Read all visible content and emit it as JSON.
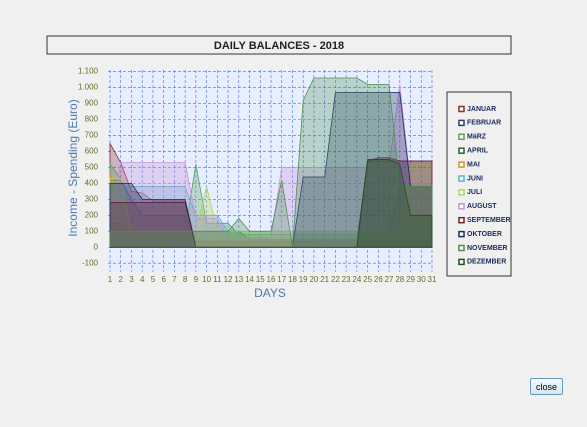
{
  "chart_data": {
    "type": "area",
    "title": "DAILY BALANCES - 2018",
    "x_label": "DAYS",
    "y_label": "Income - Spending (Euro)",
    "x": [
      1,
      2,
      3,
      4,
      5,
      6,
      7,
      8,
      9,
      10,
      11,
      12,
      13,
      14,
      15,
      16,
      17,
      18,
      19,
      20,
      21,
      22,
      23,
      24,
      25,
      26,
      27,
      28,
      29,
      30,
      31
    ],
    "xlim": [
      1,
      31
    ],
    "xticks": [
      1,
      2,
      3,
      4,
      5,
      6,
      7,
      8,
      9,
      10,
      11,
      12,
      13,
      14,
      15,
      16,
      17,
      18,
      19,
      20,
      21,
      22,
      23,
      24,
      25,
      26,
      27,
      28,
      29,
      30,
      31
    ],
    "ylim": [
      -155,
      1110
    ],
    "yticks": [
      {
        "value": 1100,
        "label": "1.100"
      },
      {
        "value": 1000,
        "label": "1.000"
      },
      900,
      800,
      700,
      600,
      500,
      400,
      300,
      200,
      100,
      0,
      -100
    ],
    "grid": true,
    "series": [
      {
        "name": "JANUAR",
        "color": "#8b2e2e",
        "values": [
          650,
          530,
          350,
          340,
          290,
          290,
          290,
          290,
          30,
          30,
          30,
          30,
          30,
          30,
          30,
          30,
          30,
          30,
          30,
          30,
          0,
          0,
          0,
          0,
          0,
          0,
          0,
          0,
          0,
          0,
          0
        ]
      },
      {
        "name": "FEBRUAR",
        "color": "#2e3a6e",
        "values": [
          420,
          420,
          300,
          200,
          200,
          200,
          200,
          200,
          40,
          40,
          40,
          40,
          40,
          40,
          40,
          40,
          40,
          40,
          40,
          40,
          40,
          40,
          40,
          40,
          540,
          540,
          540,
          540,
          540,
          540,
          540
        ]
      },
      {
        "name": "MäRZ",
        "color": "#5a9e5a",
        "values": [
          520,
          430,
          180,
          100,
          100,
          100,
          100,
          100,
          520,
          150,
          150,
          150,
          80,
          80,
          80,
          80,
          80,
          80,
          80,
          80,
          80,
          80,
          80,
          80,
          80,
          80,
          80,
          380,
          380,
          380,
          380
        ]
      },
      {
        "name": "APRIL",
        "color": "#2e5e2e",
        "values": [
          150,
          150,
          100,
          100,
          100,
          100,
          100,
          100,
          100,
          100,
          100,
          100,
          100,
          50,
          50,
          50,
          50,
          50,
          50,
          50,
          50,
          50,
          50,
          50,
          50,
          50,
          50,
          50,
          50,
          50,
          50
        ]
      },
      {
        "name": "MAI",
        "color": "#e08a2e",
        "values": [
          460,
          300,
          250,
          250,
          250,
          250,
          250,
          250,
          50,
          50,
          50,
          50,
          50,
          50,
          50,
          50,
          50,
          50,
          50,
          50,
          50,
          50,
          50,
          50,
          50,
          50,
          50,
          50,
          50,
          50,
          50
        ]
      },
      {
        "name": "JUNI",
        "color": "#5ab0c8",
        "values": [
          380,
          380,
          380,
          380,
          380,
          380,
          380,
          380,
          200,
          200,
          200,
          100,
          100,
          100,
          100,
          100,
          100,
          100,
          100,
          100,
          100,
          100,
          100,
          100,
          100,
          100,
          100,
          100,
          100,
          100,
          100
        ]
      },
      {
        "name": "JULI",
        "color": "#b0d84a",
        "values": [
          430,
          430,
          100,
          100,
          100,
          100,
          100,
          100,
          100,
          380,
          100,
          100,
          100,
          100,
          100,
          100,
          100,
          100,
          100,
          100,
          100,
          100,
          100,
          100,
          100,
          100,
          100,
          100,
          520,
          520,
          520
        ]
      },
      {
        "name": "AUGUST",
        "color": "#c890d8",
        "values": [
          200,
          530,
          530,
          530,
          530,
          530,
          530,
          530,
          180,
          180,
          180,
          60,
          60,
          60,
          60,
          60,
          500,
          500,
          500,
          500,
          500,
          500,
          500,
          500,
          500,
          500,
          500,
          1020,
          400,
          400,
          400
        ]
      },
      {
        "name": "SEPTEMBER",
        "color": "#7a1a2e",
        "values": [
          280,
          280,
          280,
          280,
          280,
          280,
          280,
          280,
          0,
          0,
          0,
          0,
          0,
          0,
          0,
          0,
          0,
          0,
          0,
          0,
          0,
          0,
          0,
          0,
          540,
          560,
          560,
          540,
          540,
          540,
          540
        ]
      },
      {
        "name": "OKTOBER",
        "color": "#1a2a5e",
        "values": [
          400,
          400,
          400,
          300,
          300,
          300,
          300,
          300,
          0,
          0,
          0,
          0,
          0,
          0,
          0,
          0,
          0,
          0,
          440,
          440,
          440,
          970,
          970,
          970,
          970,
          970,
          970,
          970,
          380,
          380,
          380
        ]
      },
      {
        "name": "NOVEMBER",
        "color": "#4e8e4e",
        "values": [
          100,
          100,
          100,
          100,
          100,
          100,
          100,
          100,
          100,
          100,
          100,
          100,
          180,
          100,
          100,
          100,
          420,
          0,
          920,
          1060,
          1060,
          1060,
          1060,
          1060,
          1020,
          1020,
          1020,
          380,
          380,
          380,
          380
        ]
      },
      {
        "name": "DEZEMBER",
        "color": "#1e4e1e",
        "values": [
          0,
          0,
          0,
          0,
          0,
          0,
          0,
          0,
          0,
          0,
          0,
          0,
          0,
          0,
          0,
          0,
          0,
          0,
          0,
          0,
          0,
          0,
          0,
          0,
          550,
          550,
          550,
          520,
          200,
          200,
          200
        ]
      }
    ]
  },
  "close_button": "close"
}
